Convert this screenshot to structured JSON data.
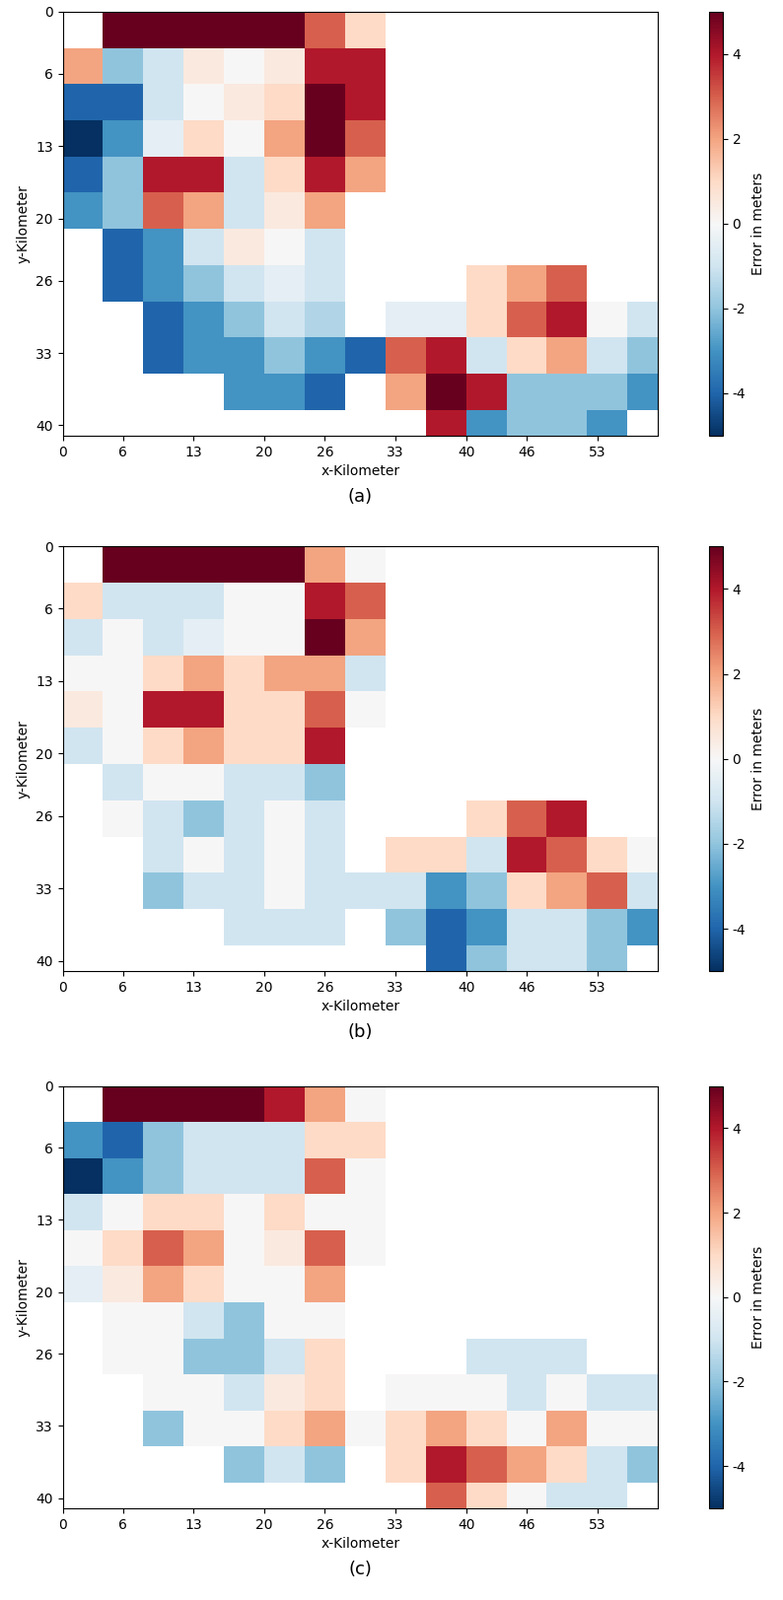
{
  "chart_data": [
    {
      "type": "heatmap",
      "title": "(a)",
      "x_label": "x-Kilometer",
      "y_label": "y-Kilometer",
      "xlim": [
        0,
        59
      ],
      "ylim": [
        41,
        0
      ],
      "xticks": [
        0,
        6,
        13,
        20,
        26,
        33,
        40,
        46,
        53
      ],
      "yticks": [
        0,
        6,
        13,
        20,
        26,
        33,
        40
      ],
      "x_edges": [
        0,
        4,
        8,
        12,
        16,
        20,
        24,
        28,
        32,
        36,
        40,
        44,
        48,
        52,
        56,
        60
      ],
      "y_edges": [
        0,
        3.5,
        7,
        10.5,
        14,
        17.5,
        21,
        24.5,
        28,
        31.5,
        35,
        38.5,
        42
      ],
      "cells": [
        [
          null,
          5,
          5,
          5,
          5,
          5,
          3,
          1,
          null,
          null,
          null,
          null,
          null,
          null,
          null
        ],
        [
          2,
          -2,
          -1,
          0.5,
          0,
          0.5,
          4,
          4,
          null,
          null,
          null,
          null,
          null,
          null,
          null
        ],
        [
          -4,
          -4,
          -1,
          0,
          0.5,
          1,
          5,
          4,
          null,
          null,
          null,
          null,
          null,
          null,
          null
        ],
        [
          -5,
          -3,
          -0.5,
          1,
          0,
          2,
          5,
          3,
          null,
          null,
          null,
          null,
          null,
          null,
          null
        ],
        [
          -4,
          -2,
          4,
          4,
          -1,
          1,
          4,
          2,
          null,
          null,
          null,
          null,
          null,
          null,
          null
        ],
        [
          -3,
          -2,
          3,
          2,
          -1,
          0.5,
          2,
          null,
          null,
          null,
          null,
          null,
          null,
          null,
          null
        ],
        [
          null,
          -4,
          -3,
          -1,
          0.5,
          0,
          -1,
          null,
          null,
          null,
          null,
          null,
          null,
          null,
          null
        ],
        [
          null,
          -4,
          -3,
          -2,
          -1,
          -0.5,
          -1,
          null,
          null,
          null,
          1,
          2,
          3,
          null,
          null
        ],
        [
          null,
          null,
          -4,
          -3,
          -2,
          -1,
          -1.5,
          null,
          -0.5,
          -0.5,
          1,
          3,
          4,
          0,
          -1
        ],
        [
          null,
          null,
          -4,
          -3,
          -3,
          -2,
          -3,
          -4,
          3,
          4,
          -1,
          1,
          2,
          -1,
          -2
        ],
        [
          null,
          null,
          null,
          null,
          -3,
          -3,
          -4,
          null,
          2,
          5,
          4,
          -2,
          -2,
          -2,
          -3
        ],
        [
          null,
          null,
          null,
          null,
          null,
          null,
          null,
          null,
          null,
          4,
          -3,
          -2,
          -2,
          -3,
          null
        ]
      ],
      "colorbar_label": "Error in meters",
      "colorbar_range": [
        -5,
        5
      ],
      "colorbar_ticks": [
        -4,
        -2,
        0,
        2,
        4
      ]
    },
    {
      "type": "heatmap",
      "title": "(b)",
      "x_label": "x-Kilometer",
      "y_label": "y-Kilometer",
      "xlim": [
        0,
        59
      ],
      "ylim": [
        41,
        0
      ],
      "xticks": [
        0,
        6,
        13,
        20,
        26,
        33,
        40,
        46,
        53
      ],
      "yticks": [
        0,
        6,
        13,
        20,
        26,
        33,
        40
      ],
      "x_edges": [
        0,
        4,
        8,
        12,
        16,
        20,
        24,
        28,
        32,
        36,
        40,
        44,
        48,
        52,
        56,
        60
      ],
      "y_edges": [
        0,
        3.5,
        7,
        10.5,
        14,
        17.5,
        21,
        24.5,
        28,
        31.5,
        35,
        38.5,
        42
      ],
      "cells": [
        [
          null,
          5,
          5,
          5,
          5,
          5,
          2,
          0,
          null,
          null,
          null,
          null,
          null,
          null,
          null
        ],
        [
          1,
          -1,
          -1,
          -1,
          0,
          0,
          4,
          3,
          null,
          null,
          null,
          null,
          null,
          null,
          null
        ],
        [
          -1,
          0,
          -1,
          -0.5,
          0,
          0,
          5,
          2,
          null,
          null,
          null,
          null,
          null,
          null,
          null
        ],
        [
          0,
          0,
          1,
          2,
          1,
          2,
          2,
          -1,
          null,
          null,
          null,
          null,
          null,
          null,
          null
        ],
        [
          0.5,
          0,
          4,
          4,
          1,
          1,
          3,
          0,
          null,
          null,
          null,
          null,
          null,
          null,
          null
        ],
        [
          -1,
          0,
          1,
          2,
          1,
          1,
          4,
          null,
          null,
          null,
          null,
          null,
          null,
          null,
          null
        ],
        [
          null,
          -1,
          0,
          0,
          -1,
          -1,
          -2,
          null,
          null,
          null,
          null,
          null,
          null,
          null,
          null
        ],
        [
          null,
          0,
          -1,
          -2,
          -1,
          0,
          -1,
          null,
          null,
          null,
          1,
          3,
          4,
          null,
          null
        ],
        [
          null,
          null,
          -1,
          0,
          -1,
          0,
          -1,
          null,
          1,
          1,
          -1,
          4,
          3,
          1,
          0
        ],
        [
          null,
          null,
          -2,
          -1,
          -1,
          0,
          -1,
          -1,
          -1,
          -3,
          -2,
          1,
          2,
          3,
          -1
        ],
        [
          null,
          null,
          null,
          null,
          -1,
          -1,
          -1,
          null,
          -2,
          -4,
          -3,
          -1,
          -1,
          -2,
          -3
        ],
        [
          null,
          null,
          null,
          null,
          null,
          null,
          null,
          null,
          null,
          -4,
          -2,
          -1,
          -1,
          -2,
          null
        ]
      ],
      "colorbar_label": "Error in meters",
      "colorbar_range": [
        -5,
        5
      ],
      "colorbar_ticks": [
        -4,
        -2,
        0,
        2,
        4
      ]
    },
    {
      "type": "heatmap",
      "title": "(c)",
      "x_label": "x-Kilometer",
      "y_label": "y-Kilometer",
      "xlim": [
        0,
        59
      ],
      "ylim": [
        41,
        0
      ],
      "xticks": [
        0,
        6,
        13,
        20,
        26,
        33,
        40,
        46,
        53
      ],
      "yticks": [
        0,
        6,
        13,
        20,
        26,
        33,
        40
      ],
      "x_edges": [
        0,
        4,
        8,
        12,
        16,
        20,
        24,
        28,
        32,
        36,
        40,
        44,
        48,
        52,
        56,
        60
      ],
      "y_edges": [
        0,
        3.5,
        7,
        10.5,
        14,
        17.5,
        21,
        24.5,
        28,
        31.5,
        35,
        38.5,
        42
      ],
      "cells": [
        [
          null,
          5,
          5,
          5,
          5,
          4,
          2,
          0,
          null,
          null,
          null,
          null,
          null,
          null,
          null
        ],
        [
          -3,
          -4,
          -2,
          -1,
          -1,
          -1,
          1,
          1,
          null,
          null,
          null,
          null,
          null,
          null,
          null
        ],
        [
          -5,
          -3,
          -2,
          -1,
          -1,
          -1,
          3,
          0,
          null,
          null,
          null,
          null,
          null,
          null,
          null
        ],
        [
          -1,
          0,
          1,
          1,
          0,
          1,
          0,
          0,
          null,
          null,
          null,
          null,
          null,
          null,
          null
        ],
        [
          0,
          1,
          3,
          2,
          0,
          0.5,
          3,
          0,
          null,
          null,
          null,
          null,
          null,
          null,
          null
        ],
        [
          -0.5,
          0.5,
          2,
          1,
          0,
          0,
          2,
          null,
          null,
          null,
          null,
          null,
          null,
          null,
          null
        ],
        [
          null,
          0,
          0,
          -1,
          -2,
          0,
          0,
          null,
          null,
          null,
          null,
          null,
          null,
          null,
          null
        ],
        [
          null,
          0,
          0,
          -2,
          -2,
          -1,
          1,
          null,
          null,
          null,
          -1,
          -1,
          -1,
          null,
          null
        ],
        [
          null,
          null,
          0,
          0,
          -1,
          0.5,
          1,
          null,
          0,
          0,
          0,
          -1,
          0,
          -1,
          -1
        ],
        [
          null,
          null,
          -2,
          0,
          0,
          1,
          2,
          0,
          1,
          2,
          1,
          0,
          2,
          0,
          0
        ],
        [
          null,
          null,
          null,
          null,
          -2,
          -1,
          -2,
          null,
          1,
          4,
          3,
          2,
          1,
          -1,
          -2
        ],
        [
          null,
          null,
          null,
          null,
          null,
          null,
          null,
          null,
          null,
          3,
          1,
          0,
          -1,
          -1,
          null
        ]
      ],
      "colorbar_label": "Error in meters",
      "colorbar_range": [
        -5,
        5
      ],
      "colorbar_ticks": [
        -4,
        -2,
        0,
        2,
        4
      ]
    }
  ]
}
